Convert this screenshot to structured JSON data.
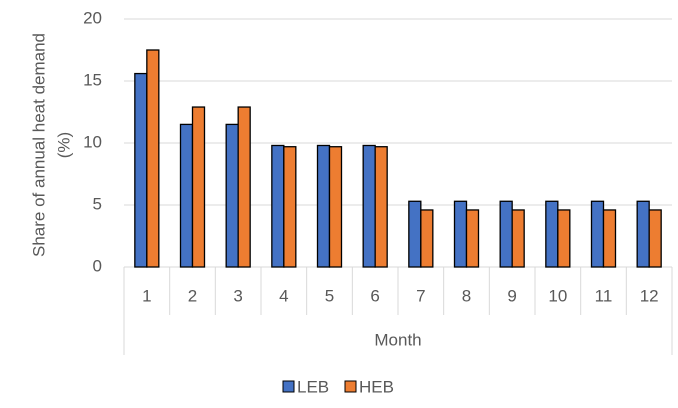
{
  "chart_data": {
    "type": "bar",
    "y_label": [
      "Share of annual heat demand",
      "(%)"
    ],
    "x_label": "Month",
    "categories": [
      "1",
      "2",
      "3",
      "4",
      "5",
      "6",
      "7",
      "8",
      "9",
      "10",
      "11",
      "12"
    ],
    "series": [
      {
        "name": "LEB",
        "color": "#4472c4",
        "values": [
          15.6,
          11.5,
          11.5,
          9.8,
          9.8,
          9.8,
          5.3,
          5.3,
          5.3,
          5.3,
          5.3,
          5.3
        ]
      },
      {
        "name": "HEB",
        "color": "#ed7d31",
        "values": [
          17.5,
          12.9,
          12.9,
          9.7,
          9.7,
          9.7,
          4.6,
          4.6,
          4.6,
          4.6,
          4.6,
          4.6
        ]
      }
    ],
    "ylim": [
      0,
      20
    ],
    "yticks": [
      0,
      5,
      10,
      15,
      20
    ],
    "grid": true,
    "legend": "bottom"
  }
}
